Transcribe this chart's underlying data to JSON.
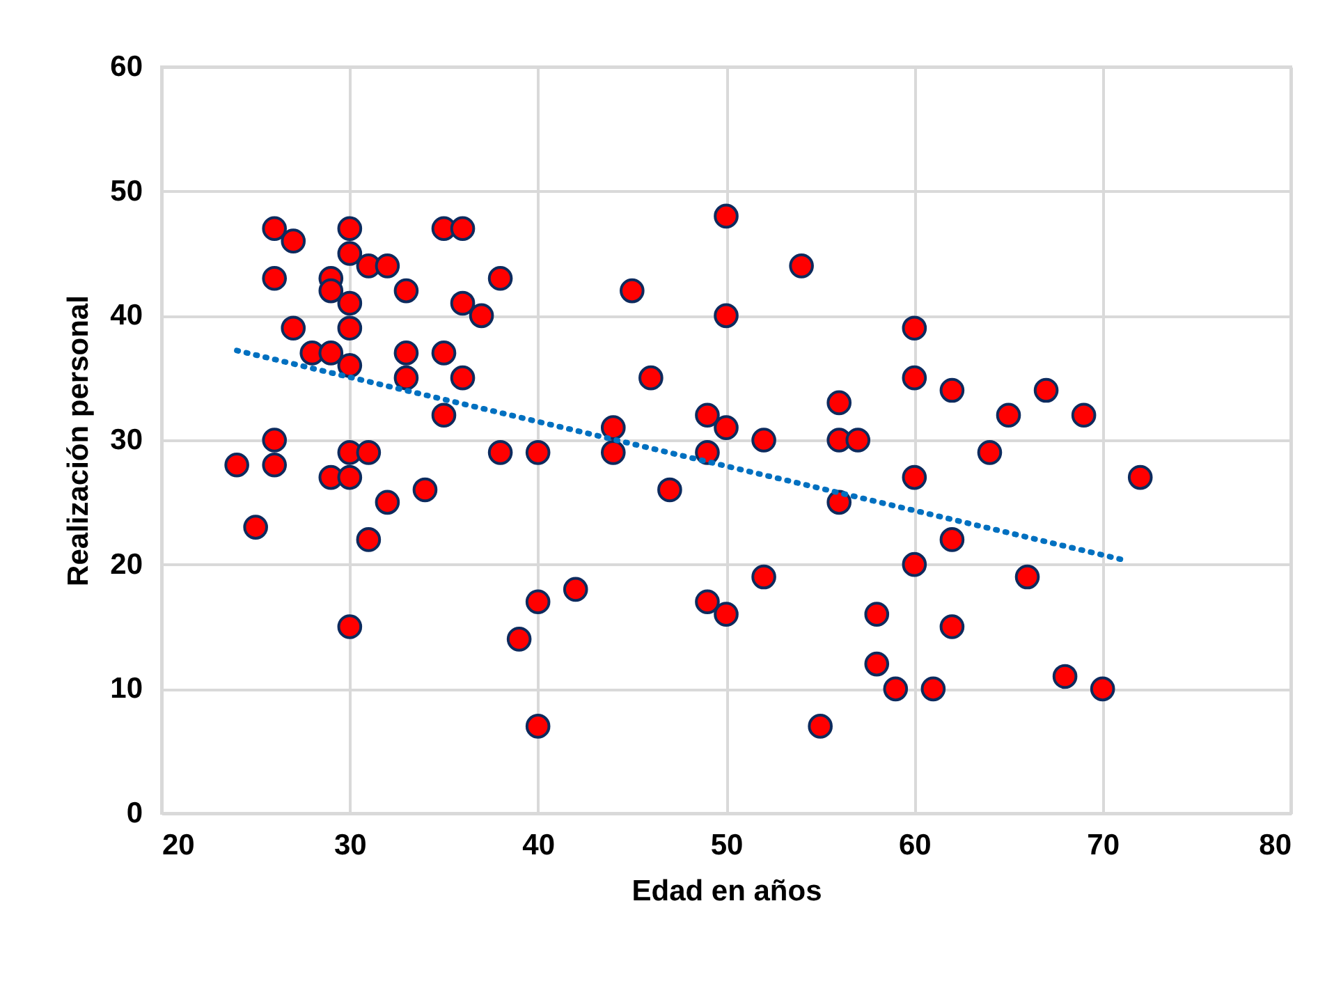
{
  "chart_data": {
    "type": "scatter",
    "xlabel": "Edad en años",
    "ylabel": "Realización personal",
    "xlim": [
      20,
      80
    ],
    "xticks": [
      20,
      30,
      40,
      50,
      60,
      70,
      80
    ],
    "ylim": [
      0,
      60
    ],
    "yticks": [
      0,
      10,
      20,
      30,
      40,
      50,
      60
    ],
    "grid": true,
    "series": [
      {
        "marker": "circle",
        "color": "#ff0000",
        "x": [
          26,
          27,
          30,
          35,
          36,
          30,
          31,
          32,
          26,
          29,
          29,
          38,
          33,
          30,
          36,
          37,
          30,
          27,
          28,
          29,
          33,
          35,
          30,
          33,
          36,
          35,
          24,
          26,
          26,
          30,
          31,
          29,
          30,
          38,
          40,
          32,
          34,
          31,
          25,
          30,
          40,
          39,
          40,
          42,
          50,
          54,
          45,
          50,
          46,
          44,
          44,
          49,
          49,
          50,
          52,
          47,
          56,
          56,
          57,
          56,
          60,
          60,
          52,
          49,
          50,
          58,
          58,
          59,
          61,
          55,
          60,
          60,
          62,
          62,
          62,
          64,
          65,
          67,
          69,
          66,
          68,
          70,
          72
        ],
        "values": [
          47,
          46,
          47,
          47,
          47,
          45,
          44,
          44,
          43,
          43,
          42,
          43,
          42,
          41,
          41,
          40,
          39,
          39,
          37,
          37,
          37,
          37,
          36,
          35,
          35,
          32,
          28,
          30,
          28,
          29,
          29,
          27,
          27,
          29,
          29,
          25,
          26,
          22,
          23,
          15,
          7,
          14,
          17,
          18,
          48,
          44,
          42,
          40,
          35,
          31,
          29,
          32,
          29,
          31,
          30,
          26,
          33,
          30,
          30,
          25,
          39,
          35,
          19,
          17,
          16,
          16,
          12,
          10,
          10,
          7,
          27,
          20,
          34,
          22,
          15,
          29,
          32,
          34,
          32,
          19,
          11,
          10,
          27
        ]
      },
      {
        "type": "line",
        "color": "#0070c0",
        "line_style": "dotted",
        "x": [
          24,
          71.3
        ],
        "values": [
          37.2,
          20.3
        ]
      }
    ]
  }
}
